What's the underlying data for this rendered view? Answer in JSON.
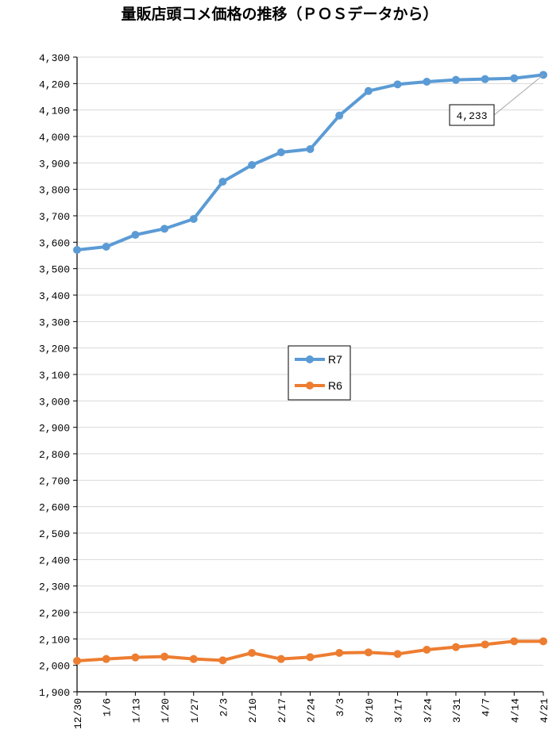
{
  "chart_data": {
    "type": "line",
    "title": "量販店頭コメ価格の推移（ＰＯＳデータから）",
    "categories": [
      "12/30",
      "1/6",
      "1/13",
      "1/20",
      "1/27",
      "2/3",
      "2/10",
      "2/17",
      "2/24",
      "3/3",
      "3/10",
      "3/17",
      "3/24",
      "3/31",
      "4/7",
      "4/14",
      "4/21"
    ],
    "ylim": [
      1900,
      4300
    ],
    "ytick_step": 100,
    "yticks": [
      "1,900",
      "2,000",
      "2,100",
      "2,200",
      "2,300",
      "2,400",
      "2,500",
      "2,600",
      "2,700",
      "2,800",
      "2,900",
      "3,000",
      "3,100",
      "3,200",
      "3,300",
      "3,400",
      "3,500",
      "3,600",
      "3,700",
      "3,800",
      "3,900",
      "4,000",
      "4,100",
      "4,200",
      "4,300"
    ],
    "grid": true,
    "legend_position": "center",
    "series": [
      {
        "name": "R7",
        "color": "#5b9bd5",
        "values": [
          3571,
          3583,
          3628,
          3651,
          3688,
          3829,
          3892,
          3940,
          3952,
          4079,
          4172,
          4197,
          4207,
          4214,
          4217,
          4220,
          4233
        ]
      },
      {
        "name": "R6",
        "color": "#ed7d31",
        "values": [
          2017,
          2024,
          2030,
          2033,
          2024,
          2019,
          2047,
          2024,
          2031,
          2047,
          2049,
          2043,
          2059,
          2069,
          2079,
          2091,
          2091
        ]
      }
    ],
    "annotation": {
      "text": "4,233",
      "series": 0,
      "point_index": 16
    }
  }
}
